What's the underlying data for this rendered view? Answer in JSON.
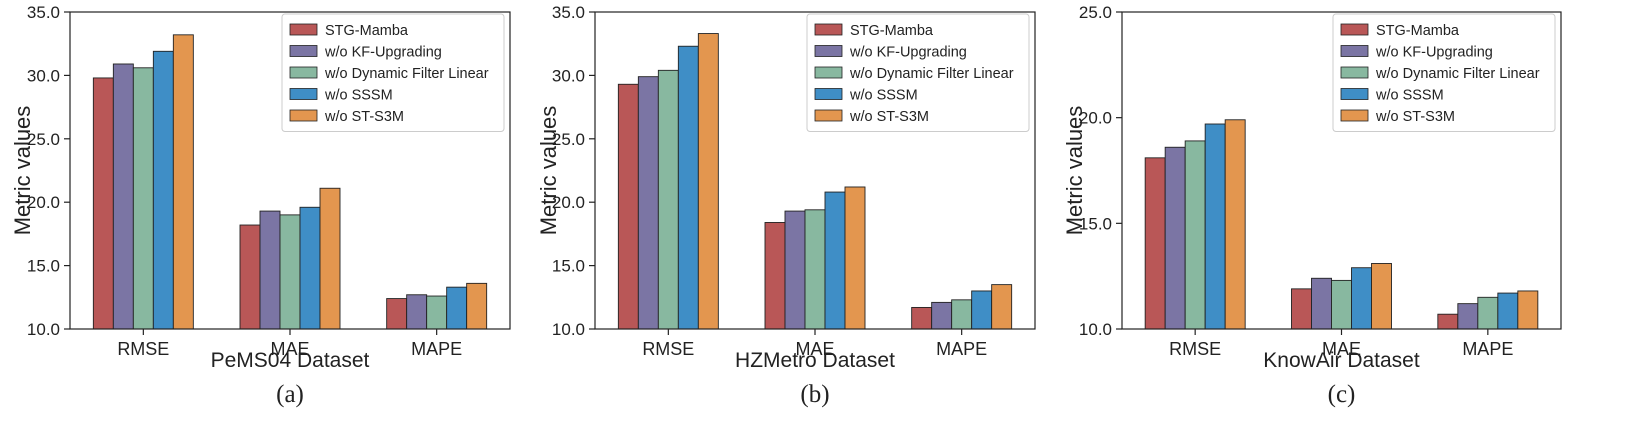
{
  "series_names": [
    "STG-Mamba",
    "w/o KF-Upgrading",
    "w/o Dynamic Filter Linear",
    "w/o SSSM",
    "w/o ST-S3M"
  ],
  "series_colors": [
    "#b95757",
    "#7b75a4",
    "#88b8a0",
    "#3f8ec6",
    "#e3964f"
  ],
  "chart_data": [
    {
      "type": "bar",
      "panel_tag": "(a)",
      "xlabel": "PeMS04 Dataset",
      "ylabel": "Metric values",
      "categories": [
        "RMSE",
        "MAE",
        "MAPE"
      ],
      "ylim": [
        10.0,
        35.0
      ],
      "yticks": [
        10.0,
        15.0,
        20.0,
        25.0,
        30.0,
        35.0
      ],
      "ytick_labels": [
        "10.0",
        "15.0",
        "20.0",
        "25.0",
        "30.0",
        "35.0"
      ],
      "legend": "top-right",
      "series": [
        {
          "name": "STG-Mamba",
          "values": [
            29.8,
            18.2,
            12.4
          ]
        },
        {
          "name": "w/o KF-Upgrading",
          "values": [
            30.9,
            19.3,
            12.7
          ]
        },
        {
          "name": "w/o Dynamic Filter Linear",
          "values": [
            30.6,
            19.0,
            12.6
          ]
        },
        {
          "name": "w/o SSSM",
          "values": [
            31.9,
            19.6,
            13.3
          ]
        },
        {
          "name": "w/o ST-S3M",
          "values": [
            33.2,
            21.1,
            13.6
          ]
        }
      ]
    },
    {
      "type": "bar",
      "panel_tag": "(b)",
      "xlabel": "HZMetro Dataset",
      "ylabel": "Metric values",
      "categories": [
        "RMSE",
        "MAE",
        "MAPE"
      ],
      "ylim": [
        10.0,
        35.0
      ],
      "yticks": [
        10.0,
        15.0,
        20.0,
        25.0,
        30.0,
        35.0
      ],
      "ytick_labels": [
        "10.0",
        "15.0",
        "20.0",
        "25.0",
        "30.0",
        "35.0"
      ],
      "legend": "top-right",
      "series": [
        {
          "name": "STG-Mamba",
          "values": [
            29.3,
            18.4,
            11.7
          ]
        },
        {
          "name": "w/o KF-Upgrading",
          "values": [
            29.9,
            19.3,
            12.1
          ]
        },
        {
          "name": "w/o Dynamic Filter Linear",
          "values": [
            30.4,
            19.4,
            12.3
          ]
        },
        {
          "name": "w/o SSSM",
          "values": [
            32.3,
            20.8,
            13.0
          ]
        },
        {
          "name": "w/o ST-S3M",
          "values": [
            33.3,
            21.2,
            13.5
          ]
        }
      ]
    },
    {
      "type": "bar",
      "panel_tag": "(c)",
      "xlabel": "KnowAir Dataset",
      "ylabel": "Metric values",
      "categories": [
        "RMSE",
        "MAE",
        "MAPE"
      ],
      "ylim": [
        10.0,
        25.0
      ],
      "yticks": [
        10.0,
        15.0,
        20.0,
        25.0
      ],
      "ytick_labels": [
        "10.0",
        "15.0",
        "20.0",
        "25.0"
      ],
      "legend": "top-right",
      "series": [
        {
          "name": "STG-Mamba",
          "values": [
            18.1,
            11.9,
            10.7
          ]
        },
        {
          "name": "w/o KF-Upgrading",
          "values": [
            18.6,
            12.4,
            11.2
          ]
        },
        {
          "name": "w/o Dynamic Filter Linear",
          "values": [
            18.9,
            12.3,
            11.5
          ]
        },
        {
          "name": "w/o SSSM",
          "values": [
            19.7,
            12.9,
            11.7
          ]
        },
        {
          "name": "w/o ST-S3M",
          "values": [
            19.9,
            13.1,
            11.8
          ]
        }
      ]
    }
  ]
}
